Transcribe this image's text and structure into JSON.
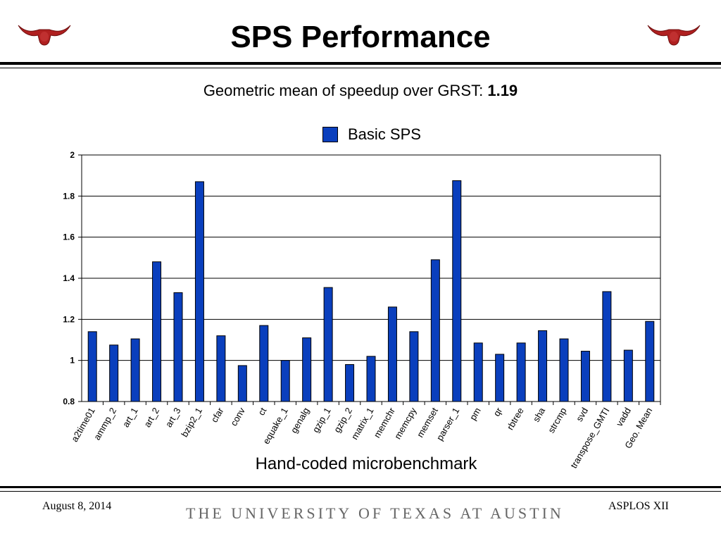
{
  "slide": {
    "title": "SPS Performance",
    "subtitle_text": "Geometric mean of speedup over GRST: ",
    "subtitle_value": "1.19",
    "footer_date": "August 8, 2014",
    "footer_university": "THE UNIVERSITY OF TEXAS AT AUSTIN",
    "footer_conference": "ASPLOS XII",
    "logo_icon": "longhorn-icon"
  },
  "chart_data": {
    "type": "bar",
    "title": "",
    "xlabel": "Hand-coded microbenchmark",
    "ylabel": "",
    "ylim": [
      0.8,
      2.0
    ],
    "yticks": [
      "0.8",
      "1",
      "1.2",
      "1.4",
      "1.6",
      "1.8",
      "2"
    ],
    "grid": true,
    "legend_position": "top-center",
    "categories": [
      "a2time01",
      "ammp_2",
      "art_1",
      "art_2",
      "art_3",
      "bzip2_1",
      "cfar",
      "conv",
      "ct",
      "equake_1",
      "genalg",
      "gzip_1",
      "gzip_2",
      "matrix_1",
      "memchr",
      "memcpy",
      "memset",
      "parser_1",
      "pm",
      "qr",
      "rbtree",
      "sha",
      "strcmp",
      "svd",
      "transpose_GMTI",
      "vadd",
      "Geo. Mean"
    ],
    "series": [
      {
        "name": "Basic SPS",
        "color": "#0a3fbd",
        "values": [
          1.14,
          1.075,
          1.105,
          1.48,
          1.33,
          1.87,
          1.12,
          0.975,
          1.17,
          1.0,
          1.11,
          1.355,
          0.98,
          1.02,
          1.26,
          1.14,
          1.49,
          1.875,
          1.085,
          1.03,
          1.085,
          1.145,
          1.105,
          1.045,
          1.335,
          1.05,
          1.19
        ]
      }
    ]
  }
}
